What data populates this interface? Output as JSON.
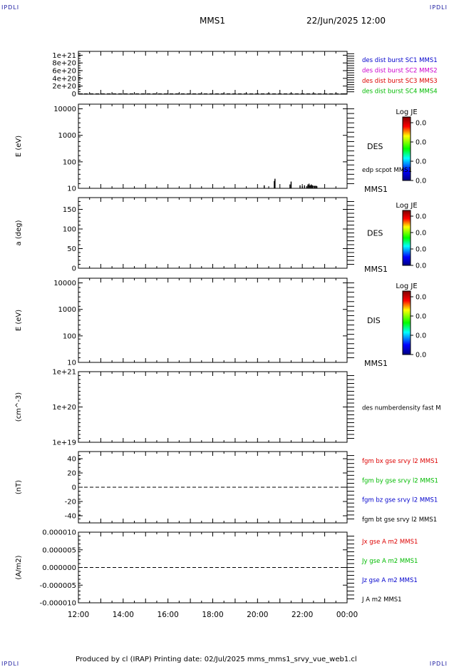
{
  "header": {
    "corner_tl": "IPDLI",
    "corner_tr": "IPDLI",
    "corner_bl": "IPDLI",
    "corner_br": "IPDLI",
    "spacecraft": "MMS1",
    "datetime": "22/Jun/2025 12:00"
  },
  "footer": {
    "text": "Produced by cl (IRAP)   Printing date: 02/Jul/2025   mms_mms1_srvy_vue_web1.cl"
  },
  "colors": {
    "blue": "#0000cc",
    "magenta": "#cc00cc",
    "red": "#dd0000",
    "green": "#00bb00",
    "black": "#000000",
    "corner": "#1a1aa0"
  },
  "chart_data": [
    {
      "id": "panel1",
      "type": "line",
      "ylabel": "",
      "ylim": [
        -1e+19,
        1.1e+21
      ],
      "yticks": [
        {
          "value": 1e+21,
          "label": "1e+21"
        },
        {
          "value": 8e+20,
          "label": "8e+20"
        },
        {
          "value": 6e+20,
          "label": "6e+20"
        },
        {
          "value": 4e+20,
          "label": "4e+20"
        },
        {
          "value": 2e+20,
          "label": "2e+20"
        },
        {
          "value": 0,
          "label": "0"
        }
      ],
      "zero_line": true,
      "labels": [
        {
          "text": "des dist burst SC1 MMS1",
          "color": "#0000cc"
        },
        {
          "text": "des dist burst SC2 MMS2",
          "color": "#cc00cc"
        },
        {
          "text": "des dist burst SC3 MMS3",
          "color": "#dd0000"
        },
        {
          "text": "des dist burst SC4 MMS4",
          "color": "#00bb00"
        }
      ]
    },
    {
      "id": "panel2",
      "type": "bar",
      "ylabel": "E (eV)",
      "scale": "log",
      "ylim": [
        10,
        15000
      ],
      "yticks": [
        {
          "value": 10000,
          "label": "10000"
        },
        {
          "value": 1000,
          "label": "1000"
        },
        {
          "value": 100,
          "label": "100"
        },
        {
          "value": 10,
          "label": "10"
        }
      ],
      "spectrogram": "DES",
      "sc_label": "MMS1",
      "overlay_label": "edp scpot MMS1",
      "colorbar": {
        "title": "Log JE",
        "ticks": [
          "0.0",
          "0.0",
          "0.0",
          "0.0"
        ]
      },
      "scpot_series": {
        "x_hours": [
          20.3,
          20.75,
          20.78,
          21.45,
          21.5,
          21.9,
          22.0,
          22.1,
          22.2,
          22.25,
          22.3,
          22.35,
          22.4,
          22.45,
          22.55,
          22.6,
          22.65
        ],
        "y_ev": [
          13,
          19,
          23,
          14,
          18,
          13,
          12,
          13,
          12,
          14,
          15,
          13,
          14,
          13,
          12,
          12,
          12
        ]
      }
    },
    {
      "id": "panel3",
      "type": "heatmap",
      "ylabel": "a (deg)",
      "ylim": [
        0,
        180
      ],
      "yticks": [
        {
          "value": 150,
          "label": "150"
        },
        {
          "value": 100,
          "label": "100"
        },
        {
          "value": 50,
          "label": "50"
        },
        {
          "value": 0,
          "label": "0"
        }
      ],
      "spectrogram": "DES",
      "sc_label": "MMS1",
      "colorbar": {
        "title": "Log JE",
        "ticks": [
          "0.0",
          "0.0",
          "0.0",
          "0.0"
        ]
      }
    },
    {
      "id": "panel4",
      "type": "heatmap",
      "ylabel": "E (eV)",
      "scale": "log",
      "ylim": [
        10,
        15000
      ],
      "yticks": [
        {
          "value": 10000,
          "label": "10000"
        },
        {
          "value": 1000,
          "label": "1000"
        },
        {
          "value": 100,
          "label": "100"
        },
        {
          "value": 10,
          "label": "10"
        }
      ],
      "spectrogram": "DIS",
      "sc_label": "MMS1",
      "colorbar": {
        "title": "Log JE",
        "ticks": [
          "0.0",
          "0.0",
          "0.0",
          "0.0"
        ]
      }
    },
    {
      "id": "panel5",
      "type": "line",
      "ylabel": "(cm^-3)",
      "scale": "log",
      "ylim": [
        1e+19,
        1e+21
      ],
      "yticks": [
        {
          "value": 1e+21,
          "label": "1e+21"
        },
        {
          "value": 1e+20,
          "label": "1e+20"
        },
        {
          "value": 1e+19,
          "label": "1e+19"
        }
      ],
      "labels": [
        {
          "text": "des numberdensity fast M",
          "color": "#000000"
        }
      ]
    },
    {
      "id": "panel6",
      "type": "line",
      "ylabel": "(nT)",
      "ylim": [
        -50,
        50
      ],
      "yticks": [
        {
          "value": 40,
          "label": "40"
        },
        {
          "value": 20,
          "label": "20"
        },
        {
          "value": 0,
          "label": "0"
        },
        {
          "value": -20,
          "label": "-20"
        },
        {
          "value": -40,
          "label": "-40"
        }
      ],
      "zero_line": true,
      "labels": [
        {
          "text": "fgm bx gse srvy l2 MMS1",
          "color": "#dd0000"
        },
        {
          "text": "fgm by gse srvy l2 MMS1",
          "color": "#00bb00"
        },
        {
          "text": "fgm bz gse srvy l2 MMS1",
          "color": "#0000cc"
        },
        {
          "text": "fgm bt gse srvy l2 MMS1",
          "color": "#000000"
        }
      ]
    },
    {
      "id": "panel7",
      "type": "line",
      "ylabel": "(A/m2)",
      "ylim": [
        -1e-05,
        1e-05
      ],
      "yticks": [
        {
          "value": 1e-05,
          "label": "0.000010"
        },
        {
          "value": 5e-06,
          "label": "0.000005"
        },
        {
          "value": 0,
          "label": "0.000000"
        },
        {
          "value": -5e-06,
          "label": "-0.000005"
        },
        {
          "value": -1e-05,
          "label": "-0.000010"
        }
      ],
      "zero_line": true,
      "labels": [
        {
          "text": "Jx gse A m2 MMS1",
          "color": "#dd0000"
        },
        {
          "text": "Jy gse A m2 MMS1",
          "color": "#00bb00"
        },
        {
          "text": "Jz gse A m2 MMS1",
          "color": "#0000cc"
        },
        {
          "text": "J A m2 MMS1",
          "color": "#000000"
        }
      ]
    }
  ],
  "xaxis": {
    "range_hours": [
      12,
      24
    ],
    "ticks": [
      {
        "value": 12,
        "label": "12:00"
      },
      {
        "value": 14,
        "label": "14:00"
      },
      {
        "value": 16,
        "label": "16:00"
      },
      {
        "value": 18,
        "label": "18:00"
      },
      {
        "value": 20,
        "label": "20:00"
      },
      {
        "value": 22,
        "label": "22:00"
      },
      {
        "value": 24,
        "label": "00:00"
      }
    ]
  }
}
